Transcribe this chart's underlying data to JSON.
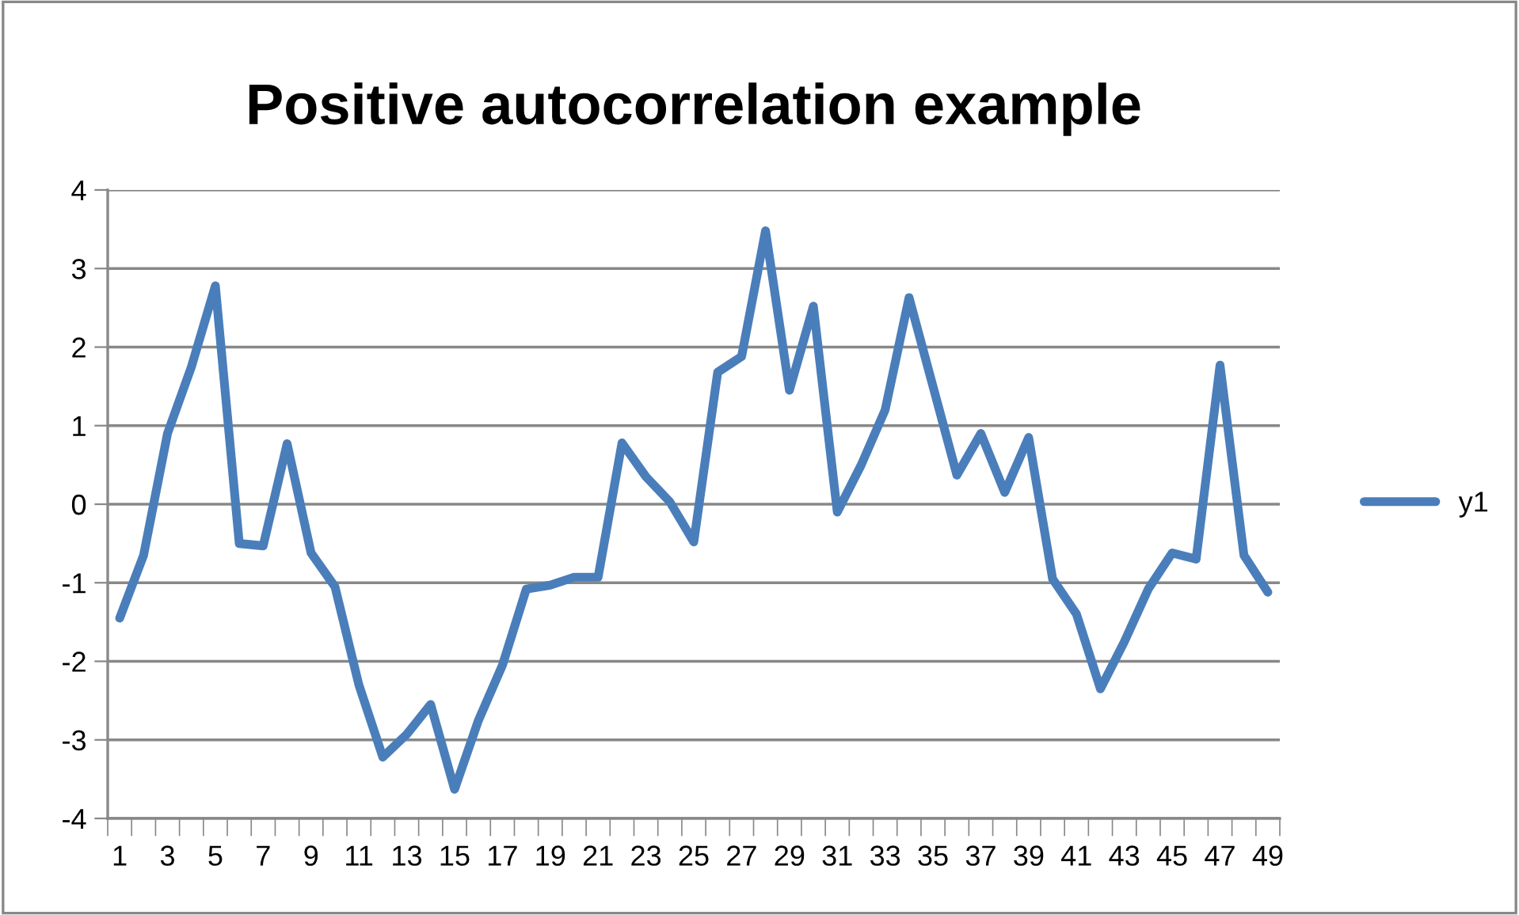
{
  "chart_data": {
    "type": "line",
    "title": "Positive autocorrelation example",
    "categories": [
      "1",
      null,
      "3",
      null,
      "5",
      null,
      "7",
      null,
      "9",
      null,
      "11",
      null,
      "13",
      null,
      "15",
      null,
      "17",
      null,
      "19",
      null,
      "21",
      null,
      "23",
      null,
      "25",
      null,
      "27",
      null,
      "29",
      null,
      "31",
      null,
      "33",
      null,
      "35",
      null,
      "37",
      null,
      "39",
      null,
      "41",
      null,
      "43",
      null,
      "45",
      null,
      "47",
      null,
      "49"
    ],
    "series": [
      {
        "name": "y1",
        "color": "#4a7ebb",
        "values": [
          -1.45,
          -0.65,
          0.9,
          1.75,
          2.78,
          -0.5,
          -0.53,
          0.77,
          -0.62,
          -1.05,
          -2.3,
          -3.22,
          -2.93,
          -2.55,
          -3.63,
          -2.75,
          -2.05,
          -1.08,
          -1.03,
          -0.93,
          -0.93,
          0.78,
          0.35,
          0.03,
          -0.48,
          1.68,
          1.88,
          3.48,
          1.45,
          2.52,
          -0.1,
          0.5,
          1.2,
          2.63,
          1.5,
          0.37,
          0.9,
          0.15,
          0.85,
          -0.95,
          -1.4,
          -2.35,
          -1.75,
          -1.08,
          -0.62,
          -0.7,
          1.77,
          -0.65,
          -1.12
        ]
      }
    ],
    "ylim": [
      -4,
      4
    ],
    "yticks": [
      -4,
      -3,
      -2,
      -1,
      0,
      1,
      2,
      3,
      4
    ],
    "grid": "y",
    "legend": "right",
    "marker": "none",
    "line_style": "solid"
  }
}
